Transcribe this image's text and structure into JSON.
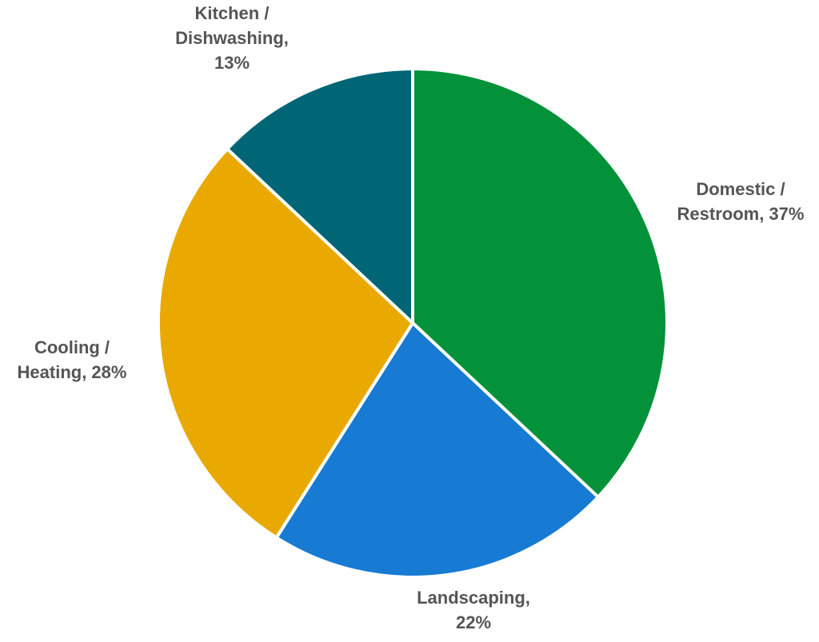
{
  "chart_data": {
    "type": "pie",
    "title": "",
    "start_angle_deg": 0,
    "direction": "clockwise",
    "slices": [
      {
        "label": "Domestic / Restroom",
        "value": 37,
        "label_lines": [
          "Domestic /",
          "Restroom, 37%"
        ],
        "color": "#03923A"
      },
      {
        "label": "Landscaping",
        "value": 22,
        "label_lines": [
          "Landscaping,",
          "22%"
        ],
        "color": "#177AD3"
      },
      {
        "label": "Cooling / Heating",
        "value": 28,
        "label_lines": [
          "Cooling /",
          "Heating, 28%"
        ],
        "color": "#E9A900"
      },
      {
        "label": "Kitchen / Dishwashing",
        "value": 13,
        "label_lines": [
          "Kitchen /",
          "Dishwashing,",
          "13%"
        ],
        "color": "#006574"
      }
    ],
    "slice_border_color": "#ffffff",
    "label_color": "#555555",
    "legend": "none"
  }
}
